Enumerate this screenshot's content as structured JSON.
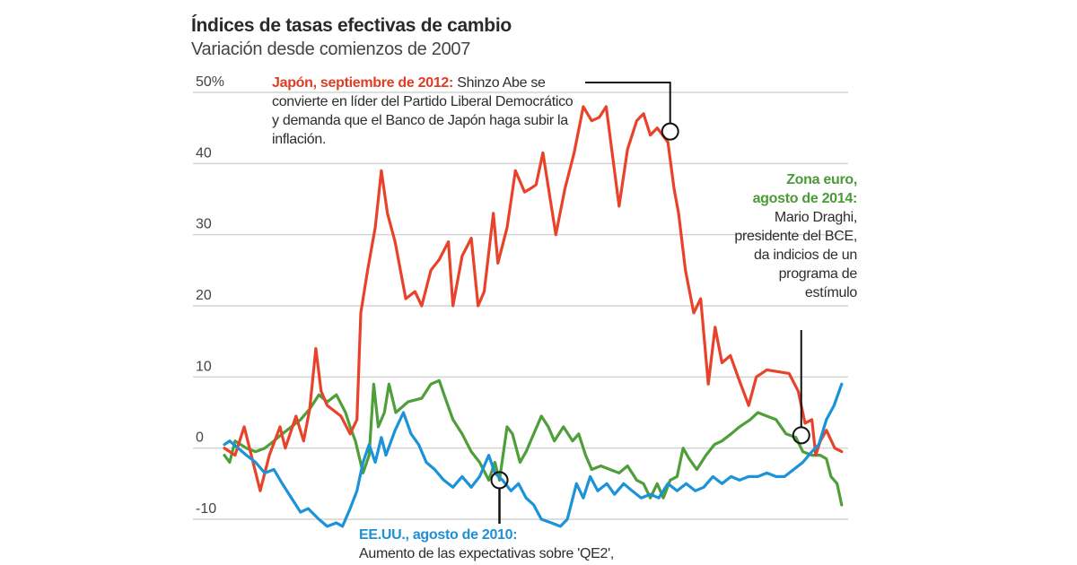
{
  "chart_data": {
    "type": "line",
    "title": "Índices de tasas efectivas de cambio",
    "subtitle": "Variación desde comienzos de 2007",
    "xlabel": "",
    "ylabel": "",
    "ylim": [
      -10,
      50
    ],
    "xlim": [
      2007.0,
      2015.15
    ],
    "y_ticks": [
      {
        "value": 50,
        "label": "50%"
      },
      {
        "value": 40,
        "label": "40"
      },
      {
        "value": 30,
        "label": "30"
      },
      {
        "value": 20,
        "label": "20"
      },
      {
        "value": 10,
        "label": "10"
      },
      {
        "value": 0,
        "label": "0"
      },
      {
        "value": -10,
        "label": "-10"
      }
    ],
    "grid": true,
    "series": [
      {
        "name": "Japón",
        "color": "#e8432a",
        "points": [
          [
            2007.0,
            0
          ],
          [
            2007.14,
            -1
          ],
          [
            2007.26,
            3
          ],
          [
            2007.47,
            -6
          ],
          [
            2007.59,
            -1
          ],
          [
            2007.73,
            3
          ],
          [
            2007.8,
            0
          ],
          [
            2007.94,
            4.5
          ],
          [
            2008.04,
            1
          ],
          [
            2008.12,
            5.5
          ],
          [
            2008.2,
            14
          ],
          [
            2008.27,
            8
          ],
          [
            2008.35,
            6
          ],
          [
            2008.53,
            4.5
          ],
          [
            2008.65,
            2
          ],
          [
            2008.74,
            4
          ],
          [
            2008.79,
            19
          ],
          [
            2008.88,
            25
          ],
          [
            2008.98,
            31
          ],
          [
            2009.06,
            39
          ],
          [
            2009.14,
            33
          ],
          [
            2009.24,
            29
          ],
          [
            2009.38,
            21
          ],
          [
            2009.5,
            22
          ],
          [
            2009.59,
            20
          ],
          [
            2009.71,
            25
          ],
          [
            2009.82,
            26.5
          ],
          [
            2009.94,
            29
          ],
          [
            2010.0,
            20
          ],
          [
            2010.12,
            27
          ],
          [
            2010.24,
            29.5
          ],
          [
            2010.33,
            20
          ],
          [
            2010.41,
            22
          ],
          [
            2010.53,
            33
          ],
          [
            2010.59,
            26
          ],
          [
            2010.71,
            31
          ],
          [
            2010.82,
            39
          ],
          [
            2010.94,
            36
          ],
          [
            2011.02,
            36.5
          ],
          [
            2011.09,
            37
          ],
          [
            2011.18,
            41.5
          ],
          [
            2011.29,
            34
          ],
          [
            2011.35,
            30
          ],
          [
            2011.47,
            36.5
          ],
          [
            2011.59,
            41.5
          ],
          [
            2011.71,
            48
          ],
          [
            2011.82,
            46
          ],
          [
            2011.92,
            46.5
          ],
          [
            2012.01,
            48
          ],
          [
            2012.18,
            34
          ],
          [
            2012.29,
            42
          ],
          [
            2012.41,
            46
          ],
          [
            2012.5,
            47
          ],
          [
            2012.59,
            44
          ],
          [
            2012.68,
            45
          ],
          [
            2012.82,
            43
          ],
          [
            2012.9,
            36.5
          ],
          [
            2012.96,
            33
          ],
          [
            2013.05,
            25
          ],
          [
            2013.16,
            19
          ],
          [
            2013.25,
            21
          ],
          [
            2013.35,
            9
          ],
          [
            2013.44,
            17
          ],
          [
            2013.53,
            12
          ],
          [
            2013.64,
            13
          ],
          [
            2013.74,
            10
          ],
          [
            2013.88,
            6
          ],
          [
            2013.98,
            10
          ],
          [
            2014.12,
            11
          ],
          [
            2014.41,
            10.5
          ],
          [
            2014.53,
            8
          ],
          [
            2014.62,
            3.5
          ],
          [
            2014.71,
            4
          ],
          [
            2014.76,
            -1
          ],
          [
            2014.82,
            1
          ],
          [
            2014.9,
            2.5
          ],
          [
            2015.01,
            0
          ],
          [
            2015.1,
            -0.5
          ]
        ]
      },
      {
        "name": "Zona euro",
        "color": "#4e9e3a",
        "points": [
          [
            2007.0,
            -1
          ],
          [
            2007.07,
            -2
          ],
          [
            2007.14,
            1
          ],
          [
            2007.29,
            0
          ],
          [
            2007.41,
            -0.5
          ],
          [
            2007.53,
            0
          ],
          [
            2007.65,
            1
          ],
          [
            2007.76,
            2
          ],
          [
            2007.88,
            3
          ],
          [
            2008.0,
            4
          ],
          [
            2008.12,
            5.5
          ],
          [
            2008.24,
            7.5
          ],
          [
            2008.35,
            6.5
          ],
          [
            2008.47,
            7.5
          ],
          [
            2008.59,
            5
          ],
          [
            2008.65,
            3
          ],
          [
            2008.72,
            1
          ],
          [
            2008.82,
            -3.5
          ],
          [
            2008.9,
            -1
          ],
          [
            2008.96,
            9
          ],
          [
            2009.02,
            3
          ],
          [
            2009.1,
            5
          ],
          [
            2009.16,
            9
          ],
          [
            2009.25,
            5
          ],
          [
            2009.41,
            6.5
          ],
          [
            2009.59,
            7
          ],
          [
            2009.71,
            9
          ],
          [
            2009.82,
            9.5
          ],
          [
            2009.9,
            7
          ],
          [
            2010.0,
            4
          ],
          [
            2010.12,
            2
          ],
          [
            2010.24,
            -0.5
          ],
          [
            2010.35,
            -2
          ],
          [
            2010.47,
            -4.5
          ],
          [
            2010.55,
            -2
          ],
          [
            2010.61,
            -4.5
          ],
          [
            2010.71,
            3
          ],
          [
            2010.78,
            2
          ],
          [
            2010.88,
            -2
          ],
          [
            2010.96,
            -0.5
          ],
          [
            2011.06,
            2
          ],
          [
            2011.16,
            4.5
          ],
          [
            2011.25,
            3
          ],
          [
            2011.33,
            1
          ],
          [
            2011.45,
            3
          ],
          [
            2011.57,
            1
          ],
          [
            2011.65,
            2
          ],
          [
            2011.74,
            -1
          ],
          [
            2011.82,
            -3
          ],
          [
            2011.94,
            -2.5
          ],
          [
            2012.06,
            -3
          ],
          [
            2012.18,
            -3.5
          ],
          [
            2012.29,
            -2.5
          ],
          [
            2012.41,
            -4.5
          ],
          [
            2012.5,
            -5
          ],
          [
            2012.59,
            -7
          ],
          [
            2012.68,
            -5
          ],
          [
            2012.76,
            -7
          ],
          [
            2012.85,
            -4.5
          ],
          [
            2012.94,
            -4
          ],
          [
            2013.02,
            0
          ],
          [
            2013.1,
            -1.5
          ],
          [
            2013.2,
            -3
          ],
          [
            2013.32,
            -1
          ],
          [
            2013.43,
            0.5
          ],
          [
            2013.53,
            1
          ],
          [
            2013.65,
            2
          ],
          [
            2013.76,
            3
          ],
          [
            2013.9,
            4
          ],
          [
            2014.0,
            5
          ],
          [
            2014.12,
            4.5
          ],
          [
            2014.24,
            4
          ],
          [
            2014.37,
            2
          ],
          [
            2014.5,
            1.5
          ],
          [
            2014.59,
            -0.5
          ],
          [
            2014.71,
            -1
          ],
          [
            2014.82,
            -1
          ],
          [
            2014.9,
            -1.5
          ],
          [
            2014.96,
            -4
          ],
          [
            2015.04,
            -5
          ],
          [
            2015.1,
            -8
          ]
        ]
      },
      {
        "name": "EE.UU.",
        "color": "#1c93d8",
        "points": [
          [
            2007.0,
            0.5
          ],
          [
            2007.07,
            1
          ],
          [
            2007.18,
            0
          ],
          [
            2007.29,
            -1
          ],
          [
            2007.41,
            -2
          ],
          [
            2007.53,
            -3.5
          ],
          [
            2007.65,
            -3
          ],
          [
            2007.76,
            -5
          ],
          [
            2007.88,
            -7
          ],
          [
            2008.0,
            -9
          ],
          [
            2008.1,
            -8.5
          ],
          [
            2008.24,
            -10
          ],
          [
            2008.35,
            -11
          ],
          [
            2008.47,
            -10.5
          ],
          [
            2008.55,
            -11
          ],
          [
            2008.65,
            -8.5
          ],
          [
            2008.74,
            -6
          ],
          [
            2008.82,
            -2
          ],
          [
            2008.9,
            0.5
          ],
          [
            2008.98,
            -2
          ],
          [
            2009.06,
            1.5
          ],
          [
            2009.12,
            -1
          ],
          [
            2009.24,
            2.5
          ],
          [
            2009.35,
            5
          ],
          [
            2009.45,
            2
          ],
          [
            2009.55,
            0.5
          ],
          [
            2009.65,
            -2
          ],
          [
            2009.76,
            -3
          ],
          [
            2009.88,
            -4.5
          ],
          [
            2010.0,
            -5.5
          ],
          [
            2010.12,
            -4
          ],
          [
            2010.24,
            -5.5
          ],
          [
            2010.35,
            -4
          ],
          [
            2010.47,
            -1
          ],
          [
            2010.55,
            -3.5
          ],
          [
            2010.65,
            -4.5
          ],
          [
            2010.76,
            -6
          ],
          [
            2010.86,
            -5
          ],
          [
            2010.96,
            -7
          ],
          [
            2011.06,
            -8
          ],
          [
            2011.16,
            -10
          ],
          [
            2011.29,
            -10.5
          ],
          [
            2011.41,
            -11
          ],
          [
            2011.5,
            -10
          ],
          [
            2011.62,
            -5
          ],
          [
            2011.71,
            -7
          ],
          [
            2011.8,
            -4
          ],
          [
            2011.9,
            -6
          ],
          [
            2012.02,
            -5
          ],
          [
            2012.12,
            -6.5
          ],
          [
            2012.24,
            -5
          ],
          [
            2012.35,
            -6
          ],
          [
            2012.47,
            -7
          ],
          [
            2012.59,
            -6.5
          ],
          [
            2012.7,
            -7
          ],
          [
            2012.82,
            -5
          ],
          [
            2012.94,
            -6
          ],
          [
            2013.06,
            -5
          ],
          [
            2013.18,
            -6
          ],
          [
            2013.29,
            -5.5
          ],
          [
            2013.41,
            -4
          ],
          [
            2013.53,
            -5
          ],
          [
            2013.65,
            -4
          ],
          [
            2013.76,
            -4.5
          ],
          [
            2013.88,
            -4
          ],
          [
            2014.0,
            -4
          ],
          [
            2014.12,
            -3.5
          ],
          [
            2014.24,
            -4
          ],
          [
            2014.35,
            -4
          ],
          [
            2014.47,
            -3
          ],
          [
            2014.59,
            -2
          ],
          [
            2014.71,
            -0.5
          ],
          [
            2014.8,
            0.5
          ],
          [
            2014.9,
            4
          ],
          [
            2015.0,
            6
          ],
          [
            2015.1,
            9
          ]
        ]
      }
    ],
    "annotations": [
      {
        "series": "Japón",
        "at": [
          2012.85,
          44.5
        ],
        "highlight": "Japón, septiembre de 2012:",
        "text": "Shinzo Abe se convierte en líder del Partido Liberal Democrático y demanda que el Banco de Japón haga subir la inflación."
      },
      {
        "series": "Zona euro",
        "at": [
          2014.57,
          1.8
        ],
        "highlight_lines": [
          "Zona euro,",
          "agosto de 2014:"
        ],
        "text_lines": [
          "Mario Draghi,",
          "presidente del BCE,",
          "da indicios de un",
          "programa de",
          "estímulo"
        ]
      },
      {
        "series": "EE.UU.",
        "at": [
          2010.61,
          -4.5
        ],
        "highlight": "EE.UU., agosto de 2010:",
        "text": "Aumento de las expectativas sobre 'QE2',"
      }
    ]
  }
}
